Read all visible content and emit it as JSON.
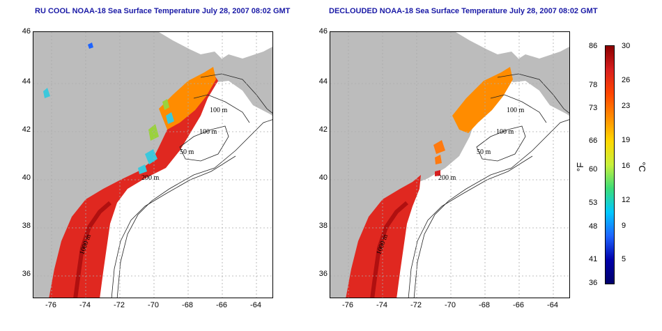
{
  "maps": [
    {
      "title": "RU COOL NOAA-18 Sea Surface Temperature July 28, 2007 08:02 GMT"
    },
    {
      "title": "DECLOUDED NOAA-18 Sea Surface Temperature July 28, 2007 08:02 GMT"
    }
  ],
  "axes": {
    "lat_ticks": [
      "46",
      "44",
      "42",
      "40",
      "38",
      "36"
    ],
    "lon_ticks": [
      "-76",
      "-74",
      "-72",
      "-70",
      "-68",
      "-66",
      "-64"
    ],
    "lat_range": [
      35,
      46
    ],
    "lon_range": [
      -77,
      -63
    ]
  },
  "isobaths": [
    "100 m",
    "100 m",
    "50 m",
    "50 m",
    "200 m",
    "1000 m"
  ],
  "colorbar": {
    "fahrenheit": [
      "86",
      "78",
      "73",
      "66",
      "60",
      "53",
      "48",
      "41",
      "36"
    ],
    "celsius": [
      "30",
      "26",
      "23",
      "19",
      "16",
      "12",
      "9",
      "5"
    ],
    "unit_f": "°F",
    "unit_c": "°C",
    "range_c": [
      2,
      30
    ],
    "colors": [
      "#8b0000",
      "#d71f1f",
      "#ff4500",
      "#ff8c00",
      "#ffd700",
      "#c8f03c",
      "#3cdc78",
      "#00c8ff",
      "#1e64ff",
      "#0000aa",
      "#00006a"
    ]
  },
  "colors": {
    "land": "#bcbcbc",
    "ocean": "#ffffff",
    "title": "#1a1aa6",
    "grid": "#aaaaaa"
  }
}
